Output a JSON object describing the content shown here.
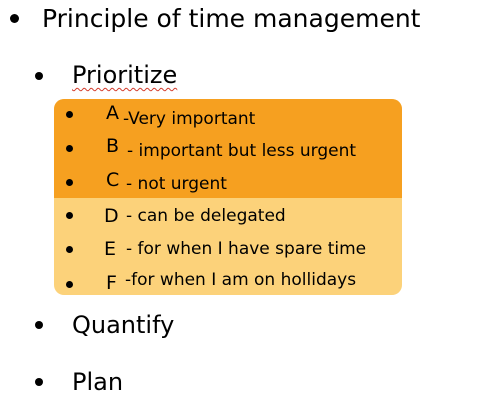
{
  "main": {
    "title": "Principle of time management"
  },
  "principles": [
    {
      "label": "Prioritize"
    },
    {
      "label": "Quantify"
    },
    {
      "label": "Plan"
    }
  ],
  "priority_levels": [
    {
      "letter": "A",
      "description": "-Very important"
    },
    {
      "letter": "B",
      "description": "- important but less urgent"
    },
    {
      "letter": "C",
      "description": "- not urgent"
    },
    {
      "letter": "D",
      "description": "- can be delegated"
    },
    {
      "letter": "E",
      "description": "- for when I have spare time"
    },
    {
      "letter": "F",
      "description": "-for when I am on hollidays"
    }
  ],
  "colors": {
    "highlight_strong": "#f6a020",
    "highlight_light": "#fcd27a",
    "spellcheck_underline": "#d23a2a"
  }
}
